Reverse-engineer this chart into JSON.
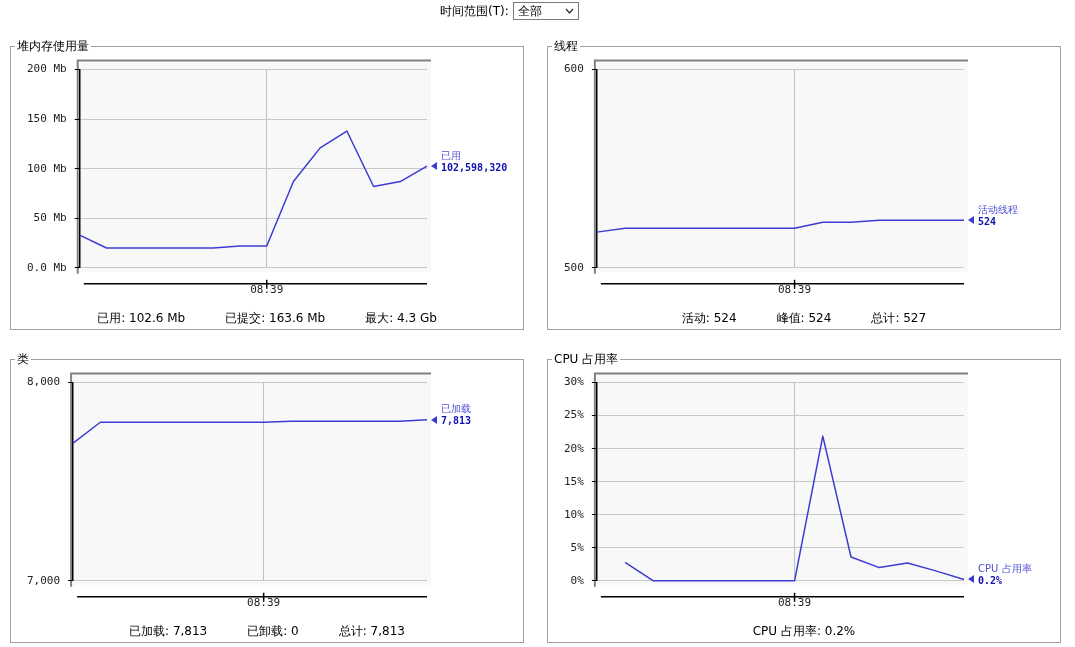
{
  "chart_data": [
    {
      "type": "other",
      "annotations": [
        "时间范围(T):",
        "全部"
      ]
    },
    {
      "type": "line",
      "title": "堆内存使用量",
      "categories": [
        null,
        null,
        null,
        null,
        null,
        null,
        null,
        "08:39",
        null,
        null,
        null,
        null,
        null,
        null
      ],
      "ylim": [
        0,
        200
      ],
      "yticks": [
        {
          "value": 0,
          "label": "0.0 Mb"
        },
        {
          "value": 50,
          "label": "50 Mb"
        },
        {
          "value": 100,
          "label": "100 Mb"
        },
        {
          "value": 150,
          "label": "150 Mb"
        },
        {
          "value": 200,
          "label": "200 Mb"
        }
      ],
      "grid": true,
      "series": [
        {
          "name": "已用",
          "color": "#3c3cd2",
          "values": [
            33,
            20,
            20,
            20,
            20,
            20,
            22,
            22,
            87,
            121,
            138,
            82,
            87,
            102.6
          ]
        }
      ],
      "annotations": [
        "102,598,320",
        "已用: 102.6 Mb",
        "已提交: 163.6 Mb",
        "最大: 4.3 Gb"
      ]
    },
    {
      "type": "line",
      "title": "线程",
      "categories": [
        null,
        null,
        null,
        null,
        null,
        null,
        null,
        "08:39",
        null,
        null,
        null,
        null,
        null,
        null
      ],
      "ylim": [
        500,
        600
      ],
      "yticks": [
        {
          "value": 500,
          "label": "500"
        },
        {
          "value": 600,
          "label": "600"
        }
      ],
      "grid": true,
      "series": [
        {
          "name": "活动线程",
          "color": "#3c3cd2",
          "values": [
            518,
            520,
            520,
            520,
            520,
            520,
            520,
            520,
            523,
            523,
            524,
            524,
            524,
            524
          ],
          "value_labels": [
            null,
            null,
            null,
            null,
            null,
            null,
            null,
            null,
            null,
            null,
            null,
            null,
            null,
            "524"
          ]
        }
      ],
      "annotations": [
        "活动: 524",
        "峰值: 524",
        "总计: 527"
      ]
    },
    {
      "type": "line",
      "title": "类",
      "categories": [
        null,
        null,
        null,
        null,
        null,
        null,
        null,
        "08:39",
        null,
        null,
        null,
        null,
        null,
        null
      ],
      "ylim": [
        7000,
        8000
      ],
      "yticks": [
        {
          "value": 7000,
          "label": "7,000"
        },
        {
          "value": 8000,
          "label": "8,000"
        }
      ],
      "grid": true,
      "series": [
        {
          "name": "已加载",
          "color": "#3c3cd2",
          "values": [
            7695,
            7800,
            7800,
            7800,
            7800,
            7800,
            7800,
            7800,
            7805,
            7805,
            7805,
            7805,
            7805,
            7813
          ],
          "value_labels": [
            null,
            null,
            null,
            null,
            null,
            null,
            null,
            null,
            null,
            null,
            null,
            null,
            null,
            "7,813"
          ]
        }
      ],
      "annotations": [
        "已加载: 7,813",
        "已卸载: 0",
        "总计: 7,813"
      ]
    },
    {
      "type": "line",
      "title": "CPU 占用率",
      "categories": [
        null,
        null,
        null,
        null,
        null,
        null,
        null,
        "08:39",
        null,
        null,
        null,
        null,
        null,
        null
      ],
      "ylim": [
        0,
        30
      ],
      "yticks": [
        {
          "value": 0,
          "label": "0%"
        },
        {
          "value": 5,
          "label": "5%"
        },
        {
          "value": 10,
          "label": "10%"
        },
        {
          "value": 15,
          "label": "15%"
        },
        {
          "value": 20,
          "label": "20%"
        },
        {
          "value": 25,
          "label": "25%"
        },
        {
          "value": 30,
          "label": "30%"
        }
      ],
      "grid": true,
      "series": [
        {
          "name": "CPU 占用率",
          "color": "#3c3cd2",
          "values": [
            null,
            2.8,
            0,
            0,
            0,
            0,
            0,
            0,
            21.9,
            3.6,
            2.0,
            2.7,
            1.5,
            0.2
          ],
          "value_labels": [
            null,
            null,
            null,
            null,
            null,
            null,
            null,
            null,
            null,
            null,
            null,
            null,
            null,
            "0.2%"
          ]
        }
      ],
      "annotations": [
        "CPU 占用率: 0.2%"
      ]
    }
  ]
}
